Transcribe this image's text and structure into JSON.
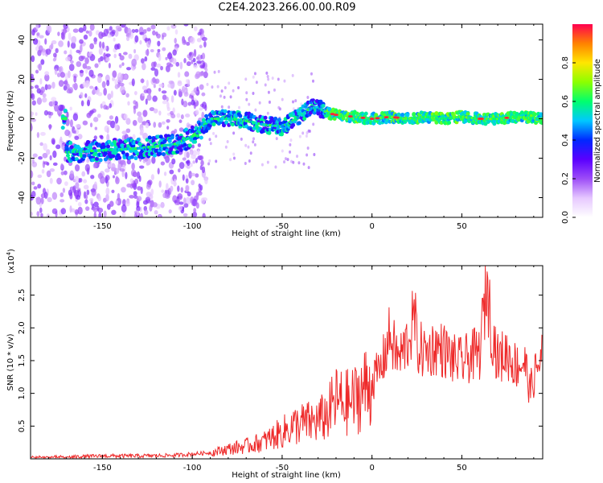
{
  "title": "C2E4.2023.266.00.00.R09",
  "chart_data": [
    {
      "type": "heatmap",
      "title": "C2E4.2023.266.00.00.R09",
      "xlabel": "Height of straight line (km)",
      "ylabel": "Frequency (Hz)",
      "xlim": [
        -190,
        95
      ],
      "ylim": [
        -50,
        48
      ],
      "xticks": [
        -150,
        -100,
        -50,
        0,
        50
      ],
      "yticks": [
        -40,
        -20,
        0,
        20,
        40
      ],
      "colorbar": {
        "label": "Normalized spectral amplitude",
        "range": [
          0.0,
          1.0
        ],
        "ticks": [
          0.0,
          0.2,
          0.4,
          0.6,
          0.8
        ],
        "tick_labels": [
          "0.0",
          "0.2",
          "0.4",
          "0.6",
          "0.8"
        ],
        "colormap": [
          "#ffffff",
          "#e6c8ff",
          "#9d4df7",
          "#5a00ff",
          "#0028ff",
          "#00c8ff",
          "#00ff6e",
          "#8cff00",
          "#ffe600",
          "#ff8200",
          "#ff0050"
        ]
      },
      "ridge": {
        "x": [
          -170,
          -150,
          -130,
          -110,
          -100,
          -95,
          -90,
          -80,
          -70,
          -60,
          -50,
          -40,
          -35,
          -30,
          -25,
          -20,
          -10,
          0,
          10,
          20,
          30,
          40,
          50,
          60,
          70,
          80,
          95
        ],
        "y": [
          -17,
          -16,
          -15,
          -13,
          -9,
          -5,
          0,
          0,
          -1,
          -3,
          -4,
          1,
          5,
          6,
          3,
          2,
          1,
          0,
          1,
          0,
          1,
          0,
          1,
          0,
          0,
          1,
          0
        ]
      },
      "grid": false
    },
    {
      "type": "line",
      "xlabel": "Height of straight line (km)",
      "ylabel": "SNR (10 * v/v)",
      "y_scale_label": "(x10",
      "y_scale_exponent": "4",
      "y_scale_suffix": ")",
      "xlim": [
        -190,
        95
      ],
      "ylim": [
        0,
        2.95
      ],
      "xticks": [
        -150,
        -100,
        -50,
        0,
        50
      ],
      "yticks": [
        0.5,
        1.0,
        1.5,
        2.0,
        2.5
      ],
      "ytick_labels": [
        "0.5",
        "1.0",
        "1.5",
        "2.0",
        "2.5"
      ],
      "color": "#ee2a2a",
      "grid": false,
      "series": [
        {
          "x": [
            -190,
            -170,
            -150,
            -130,
            -110,
            -100,
            -90,
            -80,
            -70,
            -60,
            -55,
            -50,
            -45,
            -40,
            -35,
            -30,
            -25,
            -20,
            -15,
            -10,
            -5,
            0,
            5,
            10,
            12,
            15,
            20,
            24,
            25,
            30,
            35,
            40,
            45,
            50,
            55,
            60,
            62,
            64,
            66,
            70,
            75,
            80,
            85,
            88,
            90,
            95
          ],
          "y": [
            0.02,
            0.03,
            0.05,
            0.05,
            0.06,
            0.08,
            0.1,
            0.17,
            0.22,
            0.3,
            0.38,
            0.45,
            0.55,
            0.6,
            0.62,
            0.65,
            0.75,
            1.0,
            0.95,
            1.0,
            1.2,
            1.25,
            1.45,
            2.0,
            1.8,
            1.6,
            1.9,
            2.3,
            1.8,
            1.7,
            1.8,
            1.75,
            1.6,
            1.55,
            1.65,
            1.7,
            2.3,
            2.9,
            2.2,
            1.6,
            1.7,
            1.5,
            1.55,
            1.1,
            1.3,
            1.7
          ]
        }
      ]
    }
  ]
}
